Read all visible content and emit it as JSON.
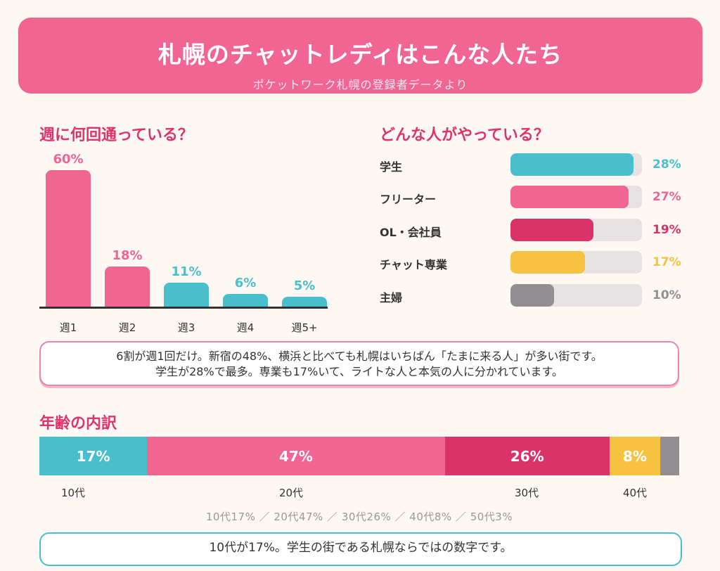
{
  "header": {
    "title": "札幌のチャットレディはこんな人たち",
    "subtitle": "ポケットワーク札幌の登録者データより"
  },
  "sections": {
    "weekly_title": "週に何回通っている？",
    "who_title": "どんな人がやっている？",
    "age_title": "年齢の内訳"
  },
  "notes": {
    "note1_line1": "6割が週1回だけ。新宿の48%、横浜と比べても札幌はいちばん「たまに来る人」が多い街です。",
    "note1_line2": "学生が28%で最多。専業も17%いて、ライトな人と本気の人に分かれています。",
    "note2": "10代が17%。学生の街である札幌ならではの数字です。"
  },
  "chart_data": [
    {
      "type": "bar",
      "categories": [
        "週1",
        "週2",
        "週3",
        "週4",
        "週5+"
      ],
      "values": [
        60,
        18,
        11,
        6,
        5
      ],
      "labels": [
        "60%",
        "18%",
        "11%",
        "6%",
        "5%"
      ],
      "colors": [
        "#f06592",
        "#f06592",
        "#49bfce",
        "#49bfce",
        "#49bfce"
      ],
      "ylim": [
        0,
        60
      ],
      "title": "週に何回通っている？"
    },
    {
      "type": "bar",
      "orientation": "horizontal",
      "categories": [
        "学生",
        "フリーター",
        "OL・会社員",
        "チャット専業",
        "主婦"
      ],
      "values": [
        28,
        27,
        19,
        17,
        10
      ],
      "labels": [
        "28%",
        "27%",
        "19%",
        "17%",
        "10%"
      ],
      "colors": [
        "#49bfce",
        "#f06592",
        "#d9336a",
        "#f8c241",
        "#928f93"
      ],
      "xlim": [
        0,
        30
      ],
      "title": "どんな人がやっている？"
    },
    {
      "type": "bar",
      "orientation": "stacked-horizontal",
      "categories": [
        "10代",
        "20代",
        "30代",
        "40代",
        "50代"
      ],
      "values": [
        17,
        47,
        26,
        8,
        3
      ],
      "labels": [
        "17%",
        "47%",
        "26%",
        "8%",
        ""
      ],
      "colors": [
        "#49bfce",
        "#f06592",
        "#d9336a",
        "#f8c241",
        "#928f93"
      ],
      "title": "年齢の内訳",
      "summary": "10代17% ／ 20代47% ／ 30代26% ／ 40代8% ／ 50代3%"
    }
  ]
}
